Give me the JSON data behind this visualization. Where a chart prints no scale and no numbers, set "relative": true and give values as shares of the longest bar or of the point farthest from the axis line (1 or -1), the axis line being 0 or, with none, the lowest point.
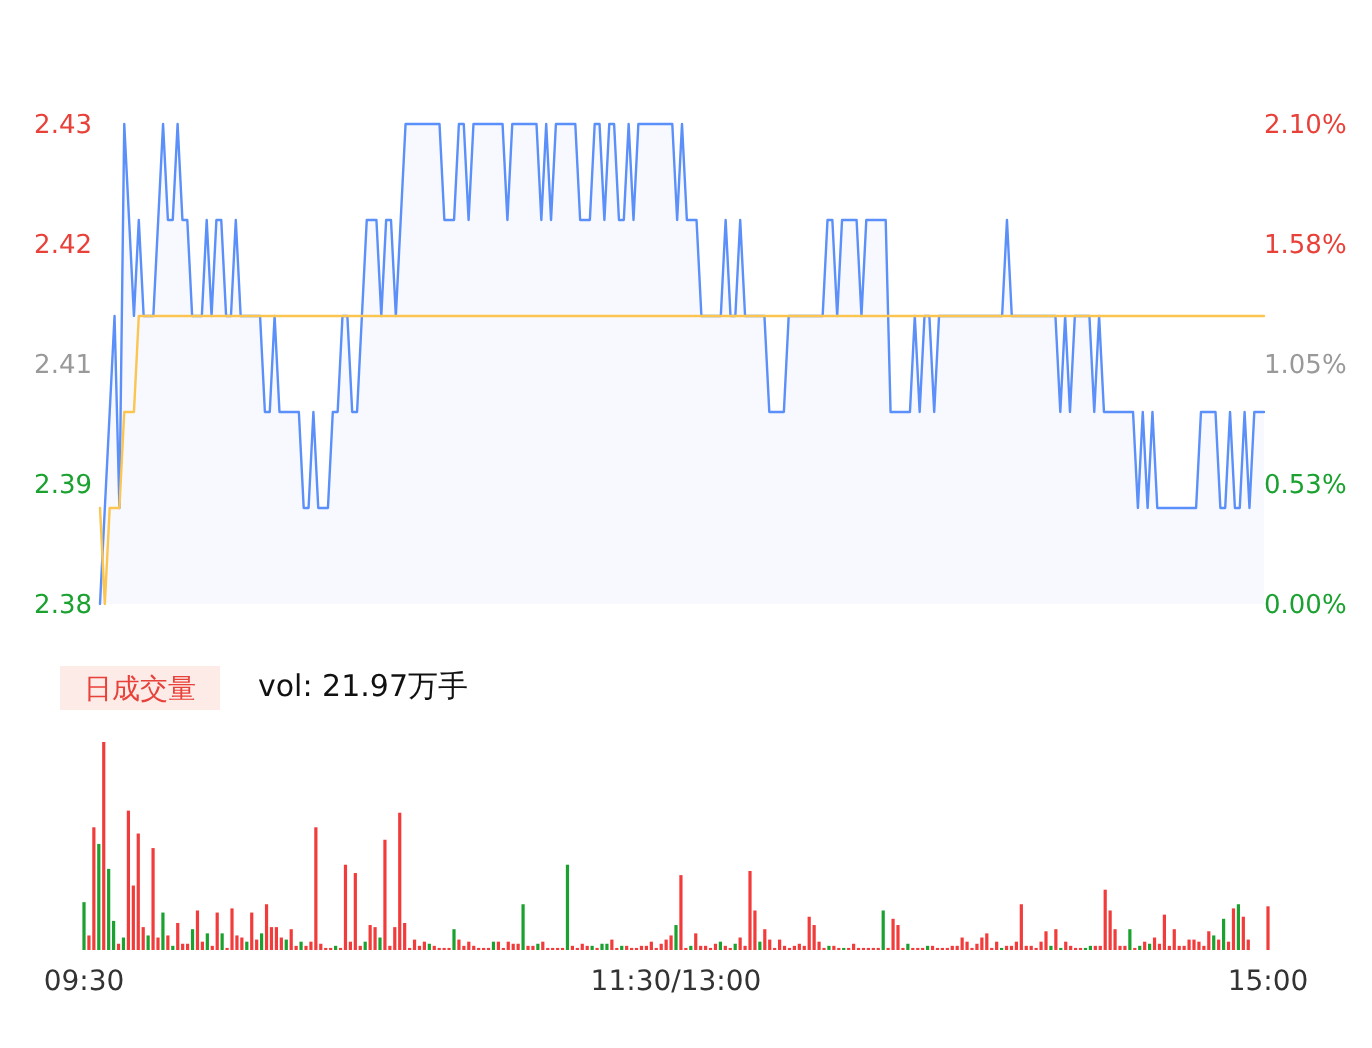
{
  "chart_data": [
    {
      "type": "line",
      "categories": [
        null,
        null,
        null,
        null,
        null,
        null,
        null,
        null,
        null,
        null,
        null,
        null,
        null,
        null,
        null,
        null,
        null,
        null,
        null,
        null,
        null,
        null,
        null,
        null,
        null,
        null,
        null,
        null,
        null,
        null,
        null,
        null,
        null,
        null,
        null,
        null,
        null,
        null,
        null,
        null,
        null,
        null,
        null,
        null,
        null,
        null,
        null,
        null,
        null,
        null,
        null,
        null,
        null,
        null,
        null,
        null,
        null,
        null,
        null,
        null,
        null,
        null,
        null,
        null,
        null,
        null,
        null,
        null,
        null,
        null,
        null,
        null,
        null,
        null,
        null,
        null,
        null,
        null,
        null,
        null,
        null,
        null,
        null,
        null,
        null,
        null,
        null,
        null,
        null,
        null,
        null,
        null,
        null,
        null,
        null,
        null,
        null,
        null,
        null,
        null,
        null,
        null,
        null,
        null,
        null,
        null,
        null,
        null,
        null,
        null,
        null,
        null,
        null,
        null,
        null,
        null,
        null,
        null,
        null,
        null,
        null,
        null,
        null,
        null,
        null,
        null,
        null,
        null,
        null,
        null,
        null,
        null,
        null,
        null,
        null,
        null,
        null,
        null,
        null,
        null,
        null,
        null,
        null,
        null,
        null,
        null,
        null,
        null,
        null,
        null,
        null,
        null,
        null,
        null,
        null,
        null,
        null,
        null,
        null,
        null,
        null,
        null,
        null,
        null,
        null,
        null,
        null,
        null,
        null,
        null,
        null,
        null,
        null,
        null,
        null,
        null,
        null,
        null,
        null,
        null,
        null,
        null,
        null,
        null,
        null,
        null,
        null,
        null,
        null,
        null,
        null,
        null,
        null,
        null,
        null,
        null,
        null,
        null,
        null,
        null,
        null,
        null,
        null,
        null,
        null,
        null,
        null,
        null,
        null,
        null,
        null,
        null,
        null,
        null,
        null,
        null,
        null,
        null,
        null,
        null,
        null,
        null,
        null,
        null,
        null,
        null,
        null,
        null,
        null,
        null,
        null,
        null,
        null,
        null,
        null,
        null,
        null,
        null,
        null,
        null,
        null
      ],
      "ylim": [
        2.38,
        2.43
      ],
      "yticks": [
        2.43,
        {
          "value": 2.4175,
          "label": "2.42"
        },
        {
          "value": 2.405,
          "label": "2.41"
        },
        {
          "value": 2.3925,
          "label": "2.39"
        },
        2.38
      ],
      "y2lim": [
        0,
        2.1
      ],
      "y2ticks": [
        {
          "value": 2.1,
          "label": "2.10%"
        },
        {
          "value": 1.575,
          "label": "1.58%"
        },
        {
          "value": 1.05,
          "label": "1.05%"
        },
        {
          "value": 0.525,
          "label": "0.53%"
        },
        {
          "value": 0,
          "label": "0.00%"
        }
      ],
      "tick_labels": [
        "y",
        "y2"
      ],
      "series": [
        {
          "type": "area",
          "color": "#5b8ff9",
          "values": [
            2.38,
            2.39,
            2.4,
            2.41,
            2.39,
            2.43,
            2.42,
            2.41,
            2.42,
            2.41,
            2.41,
            2.41,
            2.42,
            2.43,
            2.42,
            2.42,
            2.43,
            2.42,
            2.42,
            2.41,
            2.41,
            2.41,
            2.42,
            2.41,
            2.42,
            2.42,
            2.41,
            2.41,
            2.42,
            2.41,
            2.41,
            2.41,
            2.41,
            2.41,
            2.4,
            2.4,
            2.41,
            2.4,
            2.4,
            2.4,
            2.4,
            2.4,
            2.39,
            2.39,
            2.4,
            2.39,
            2.39,
            2.39,
            2.4,
            2.4,
            2.41,
            2.41,
            2.4,
            2.4,
            2.41,
            2.42,
            2.42,
            2.42,
            2.41,
            2.42,
            2.42,
            2.41,
            2.42,
            2.43,
            2.43,
            2.43,
            2.43,
            2.43,
            2.43,
            2.43,
            2.43,
            2.42,
            2.42,
            2.42,
            2.43,
            2.43,
            2.42,
            2.43,
            2.43,
            2.43,
            2.43,
            2.43,
            2.43,
            2.43,
            2.42,
            2.43,
            2.43,
            2.43,
            2.43,
            2.43,
            2.43,
            2.42,
            2.43,
            2.42,
            2.43,
            2.43,
            2.43,
            2.43,
            2.43,
            2.42,
            2.42,
            2.42,
            2.43,
            2.43,
            2.42,
            2.43,
            2.43,
            2.42,
            2.42,
            2.43,
            2.42,
            2.43,
            2.43,
            2.43,
            2.43,
            2.43,
            2.43,
            2.43,
            2.43,
            2.42,
            2.43,
            2.42,
            2.42,
            2.42,
            2.41,
            2.41,
            2.41,
            2.41,
            2.41,
            2.42,
            2.41,
            2.41,
            2.42,
            2.41,
            2.41,
            2.41,
            2.41,
            2.41,
            2.4,
            2.4,
            2.4,
            2.4,
            2.41,
            2.41,
            2.41,
            2.41,
            2.41,
            2.41,
            2.41,
            2.41,
            2.42,
            2.42,
            2.41,
            2.42,
            2.42,
            2.42,
            2.42,
            2.41,
            2.42,
            2.42,
            2.42,
            2.42,
            2.42,
            2.4,
            2.4,
            2.4,
            2.4,
            2.4,
            2.41,
            2.4,
            2.41,
            2.41,
            2.4,
            2.41,
            2.41,
            2.41,
            2.41,
            2.41,
            2.41,
            2.41,
            2.41,
            2.41,
            2.41,
            2.41,
            2.41,
            2.41,
            2.41,
            2.42,
            2.41,
            2.41,
            2.41,
            2.41,
            2.41,
            2.41,
            2.41,
            2.41,
            2.41,
            2.41,
            2.4,
            2.41,
            2.4,
            2.41,
            2.41,
            2.41,
            2.41,
            2.4,
            2.41,
            2.4,
            2.4,
            2.4,
            2.4,
            2.4,
            2.4,
            2.4,
            2.39,
            2.4,
            2.39,
            2.4,
            2.39,
            2.39,
            2.39,
            2.39,
            2.39,
            2.39,
            2.39,
            2.39,
            2.39,
            2.4,
            2.4,
            2.4,
            2.4,
            2.39,
            2.39,
            2.4,
            2.39,
            2.39,
            2.4,
            2.39,
            2.4,
            2.4,
            2.4
          ]
        },
        {
          "color": "#fbc54f",
          "values": [
            2.39,
            2.38,
            2.39,
            2.39,
            2.39,
            2.4,
            2.4,
            2.4,
            2.41,
            2.41,
            2.41,
            2.41,
            2.41,
            2.41,
            2.41,
            2.41,
            2.41,
            2.41,
            2.41,
            2.41,
            2.41,
            2.41,
            2.41,
            2.41,
            2.41,
            2.41,
            2.41,
            2.41,
            2.41,
            2.41,
            2.41,
            2.41,
            2.41,
            2.41,
            2.41,
            2.41,
            2.41,
            2.41,
            2.41,
            2.41,
            2.41,
            2.41,
            2.41,
            2.41,
            2.41,
            2.41,
            2.41,
            2.41,
            2.41,
            2.41,
            2.41,
            2.41,
            2.41,
            2.41,
            2.41,
            2.41,
            2.41,
            2.41,
            2.41,
            2.41,
            2.41,
            2.41,
            2.41,
            2.41,
            2.41,
            2.41,
            2.41,
            2.41,
            2.41,
            2.41,
            2.41,
            2.41,
            2.41,
            2.41,
            2.41,
            2.41,
            2.41,
            2.41,
            2.41,
            2.41,
            2.41,
            2.41,
            2.41,
            2.41,
            2.41,
            2.41,
            2.41,
            2.41,
            2.41,
            2.41,
            2.41,
            2.41,
            2.41,
            2.41,
            2.41,
            2.41,
            2.41,
            2.41,
            2.41,
            2.41,
            2.41,
            2.41,
            2.41,
            2.41,
            2.41,
            2.41,
            2.41,
            2.41,
            2.41,
            2.41,
            2.41,
            2.41,
            2.41,
            2.41,
            2.41,
            2.41,
            2.41,
            2.41,
            2.41,
            2.41,
            2.41,
            2.41,
            2.41,
            2.41,
            2.41,
            2.41,
            2.41,
            2.41,
            2.41,
            2.41,
            2.41,
            2.41,
            2.41,
            2.41,
            2.41,
            2.41,
            2.41,
            2.41,
            2.41,
            2.41,
            2.41,
            2.41,
            2.41,
            2.41,
            2.41,
            2.41,
            2.41,
            2.41,
            2.41,
            2.41,
            2.41,
            2.41,
            2.41,
            2.41,
            2.41,
            2.41,
            2.41,
            2.41,
            2.41,
            2.41,
            2.41,
            2.41,
            2.41,
            2.41,
            2.41,
            2.41,
            2.41,
            2.41,
            2.41,
            2.41,
            2.41,
            2.41,
            2.41,
            2.41,
            2.41,
            2.41,
            2.41,
            2.41,
            2.41,
            2.41,
            2.41,
            2.41,
            2.41,
            2.41,
            2.41,
            2.41,
            2.41,
            2.41,
            2.41,
            2.41,
            2.41,
            2.41,
            2.41,
            2.41,
            2.41,
            2.41,
            2.41,
            2.41,
            2.41,
            2.41,
            2.41,
            2.41,
            2.41,
            2.41,
            2.41,
            2.41,
            2.41,
            2.41,
            2.41,
            2.41,
            2.41,
            2.41,
            2.41,
            2.41,
            2.41,
            2.41,
            2.41,
            2.41,
            2.41,
            2.41,
            2.41,
            2.41,
            2.41,
            2.41,
            2.41,
            2.41,
            2.41,
            2.41,
            2.41,
            2.41,
            2.41,
            2.41,
            2.41,
            2.41,
            2.41,
            2.41,
            2.41,
            2.41,
            2.41,
            2.41,
            2.41
          ]
        }
      ]
    },
    {
      "type": "bar",
      "title": "日成交量",
      "subtitle": "vol: 21.97万手",
      "relative": true,
      "categories": [
        "09:30",
        null,
        null,
        null,
        null,
        null,
        null,
        null,
        null,
        null,
        null,
        null,
        null,
        null,
        null,
        null,
        null,
        null,
        null,
        null,
        null,
        null,
        null,
        null,
        null,
        null,
        null,
        null,
        null,
        null,
        null,
        null,
        null,
        null,
        null,
        null,
        null,
        null,
        null,
        null,
        null,
        null,
        null,
        null,
        null,
        null,
        null,
        null,
        null,
        null,
        null,
        null,
        null,
        null,
        null,
        null,
        null,
        null,
        null,
        null,
        null,
        null,
        null,
        null,
        null,
        null,
        null,
        null,
        null,
        null,
        null,
        null,
        null,
        null,
        null,
        null,
        null,
        null,
        null,
        null,
        null,
        null,
        null,
        null,
        null,
        null,
        null,
        null,
        null,
        null,
        null,
        null,
        null,
        null,
        null,
        null,
        null,
        null,
        null,
        null,
        null,
        null,
        null,
        null,
        null,
        null,
        null,
        null,
        null,
        null,
        null,
        null,
        null,
        null,
        null,
        null,
        null,
        null,
        null,
        null,
        "11:30/13:00",
        null,
        null,
        null,
        null,
        null,
        null,
        null,
        null,
        null,
        null,
        null,
        null,
        null,
        null,
        null,
        null,
        null,
        null,
        null,
        null,
        null,
        null,
        null,
        null,
        null,
        null,
        null,
        null,
        null,
        null,
        null,
        null,
        null,
        null,
        null,
        null,
        null,
        null,
        null,
        null,
        null,
        null,
        null,
        null,
        null,
        null,
        null,
        null,
        null,
        null,
        null,
        null,
        null,
        null,
        null,
        null,
        null,
        null,
        null,
        null,
        null,
        null,
        null,
        null,
        null,
        null,
        null,
        null,
        null,
        null,
        null,
        null,
        null,
        null,
        null,
        null,
        null,
        null,
        null,
        null,
        null,
        null,
        null,
        null,
        null,
        null,
        null,
        null,
        null,
        null,
        null,
        null,
        null,
        null,
        null,
        null,
        null,
        null,
        null,
        null,
        null,
        null,
        null,
        null,
        null,
        null,
        null,
        null,
        null,
        null,
        null,
        null,
        null,
        null,
        null,
        null,
        null,
        null,
        null,
        "15:00"
      ],
      "tick_labels": "x",
      "series": [
        {
          "color": "#f23c3c",
          "values": [
            null,
            0.07,
            0.59,
            null,
            1,
            null,
            null,
            0.03,
            null,
            0.67,
            0.31,
            0.56,
            0.11,
            null,
            0.49,
            0.06,
            null,
            0.07,
            null,
            0.13,
            0.03,
            0.03,
            null,
            0.19,
            0.04,
            null,
            0.02,
            0.18,
            null,
            0.01,
            0.2,
            0.07,
            0.06,
            null,
            0.18,
            0.05,
            null,
            0.22,
            0.11,
            0.11,
            0.06,
            null,
            0.1,
            0.02,
            null,
            0.02,
            0.04,
            0.59,
            0.03,
            0.01,
            0.01,
            null,
            0.01,
            0.41,
            0.04,
            0.37,
            0.02,
            null,
            0.12,
            0.11,
            null,
            0.53,
            0.02,
            0.11,
            0.66,
            0.13,
            0.01,
            0.05,
            0.02,
            0.04,
            null,
            0.02,
            0.01,
            0.01,
            0.01,
            null,
            0.05,
            0.02,
            0.04,
            0.02,
            0.01,
            0.01,
            0.01,
            null,
            0.04,
            0.01,
            0.04,
            0.03,
            0.03,
            null,
            0.02,
            0.02,
            null,
            0.04,
            0.01,
            0.01,
            0.01,
            0.01,
            null,
            0.02,
            0.01,
            0.03,
            0.02,
            null,
            0.01,
            null,
            null,
            0.05,
            0.01,
            null,
            0.02,
            0.01,
            0.01,
            0.02,
            0.02,
            0.04,
            0.01,
            0.03,
            0.05,
            0.07,
            null,
            0.36,
            0.01,
            null,
            0.08,
            0.02,
            0.02,
            0.01,
            0.03,
            null,
            0.02,
            0.01,
            null,
            0.06,
            0.02,
            0.38,
            0.19,
            null,
            0.1,
            0.05,
            0.01,
            0.05,
            0.02,
            0.01,
            0.02,
            0.03,
            0.02,
            0.16,
            0.12,
            0.04,
            0.01,
            null,
            0.02,
            0.01,
            null,
            0.01,
            0.03,
            0.01,
            0.01,
            0.01,
            0.01,
            0.01,
            null,
            0.01,
            0.15,
            0.12,
            0.01,
            null,
            0.01,
            0.01,
            0.01,
            null,
            0.02,
            0.01,
            0.01,
            0.01,
            0.02,
            0.02,
            0.06,
            0.04,
            0.01,
            0.03,
            0.06,
            0.08,
            0.01,
            0.04,
            null,
            0.02,
            0.02,
            0.04,
            0.22,
            0.02,
            0.02,
            0.01,
            0.04,
            0.09,
            null,
            0.1,
            null,
            0.04,
            0.02,
            0.01,
            0.01,
            null,
            null,
            0.02,
            0.02,
            0.29,
            0.19,
            0.1,
            0.02,
            0.02,
            null,
            0.01,
            null,
            0.04,
            null,
            0.06,
            0.03,
            0.17,
            0.02,
            0.1,
            0.02,
            0.02,
            0.05,
            0.05,
            0.04,
            0.02,
            0.09,
            null,
            0.05,
            null,
            0.04,
            0.2,
            null,
            0.16,
            0.05,
            null,
            null,
            null,
            0.21
          ]
        },
        {
          "color": "#1aa130",
          "values": [
            0.23,
            null,
            null,
            0.51,
            null,
            0.39,
            0.14,
            null,
            0.06,
            null,
            null,
            null,
            null,
            0.07,
            null,
            null,
            0.18,
            null,
            0.02,
            null,
            null,
            null,
            0.1,
            null,
            null,
            0.08,
            null,
            null,
            0.08,
            null,
            null,
            null,
            null,
            0.04,
            null,
            null,
            0.08,
            null,
            null,
            null,
            null,
            0.05,
            null,
            null,
            0.04,
            null,
            null,
            null,
            null,
            null,
            null,
            0.02,
            null,
            null,
            null,
            null,
            null,
            0.04,
            null,
            null,
            0.06,
            null,
            null,
            null,
            null,
            null,
            null,
            null,
            null,
            null,
            0.03,
            null,
            null,
            null,
            null,
            0.1,
            null,
            null,
            null,
            null,
            null,
            null,
            null,
            0.04,
            null,
            null,
            null,
            null,
            null,
            0.22,
            null,
            null,
            0.03,
            null,
            null,
            null,
            null,
            null,
            0.41,
            null,
            null,
            null,
            null,
            0.02,
            null,
            0.03,
            0.03,
            null,
            null,
            0.02,
            null,
            null,
            null,
            null,
            null,
            null,
            null,
            null,
            null,
            null,
            0.12,
            null,
            null,
            0.02,
            null,
            null,
            null,
            null,
            null,
            0.04,
            null,
            null,
            0.03,
            null,
            null,
            null,
            null,
            0.04,
            null,
            null,
            null,
            null,
            null,
            null,
            null,
            null,
            null,
            null,
            null,
            null,
            null,
            0.02,
            null,
            null,
            0.01,
            null,
            null,
            null,
            null,
            null,
            null,
            null,
            0.19,
            null,
            null,
            null,
            null,
            0.03,
            null,
            null,
            null,
            0.02,
            null,
            null,
            null,
            null,
            null,
            null,
            null,
            null,
            null,
            null,
            null,
            null,
            null,
            null,
            0.01,
            null,
            null,
            null,
            null,
            null,
            null,
            null,
            null,
            null,
            0.02,
            null,
            0.01,
            null,
            null,
            null,
            null,
            0.01,
            0.02,
            null,
            null,
            null,
            null,
            null,
            null,
            null,
            0.1,
            null,
            0.02,
            null,
            0.03,
            null,
            null,
            null,
            null,
            null,
            null,
            null,
            null,
            null,
            null,
            null,
            null,
            0.07,
            null,
            0.15,
            null,
            null,
            0.22,
            null,
            null,
            null,
            null,
            null,
            null
          ]
        }
      ]
    }
  ]
}
